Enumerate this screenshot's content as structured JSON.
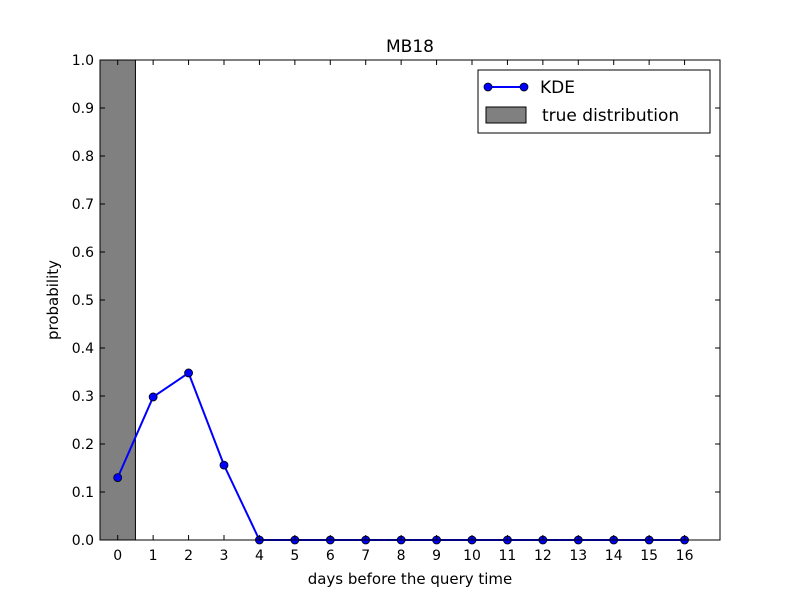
{
  "chart_data": {
    "type": "bar+line",
    "title": "MB18",
    "xlabel": "days before the query time",
    "ylabel": "probability",
    "xlim": [
      -0.5,
      17
    ],
    "ylim": [
      0,
      1.0
    ],
    "x_ticks": [
      "0",
      "1",
      "2",
      "3",
      "4",
      "5",
      "6",
      "7",
      "8",
      "9",
      "10",
      "11",
      "12",
      "13",
      "14",
      "15",
      "16"
    ],
    "y_ticks": [
      "0.0",
      "0.1",
      "0.2",
      "0.3",
      "0.4",
      "0.5",
      "0.6",
      "0.7",
      "0.8",
      "0.9",
      "1.0"
    ],
    "legend_position": "upper-right",
    "series": [
      {
        "name": "KDE",
        "kind": "line",
        "color": "#0000ff",
        "x": [
          0,
          1,
          2,
          3,
          4,
          5,
          6,
          7,
          8,
          9,
          10,
          11,
          12,
          13,
          14,
          15,
          16
        ],
        "values": [
          0.13,
          0.298,
          0.348,
          0.156,
          0,
          0,
          0,
          0,
          0,
          0,
          0,
          0,
          0,
          0,
          0,
          0,
          0
        ]
      },
      {
        "name": "true distribution",
        "kind": "bar",
        "color": "#808080",
        "x": [
          0,
          1,
          2,
          3,
          4,
          5,
          6,
          7,
          8,
          9,
          10,
          11,
          12,
          13,
          14,
          15,
          16
        ],
        "values": [
          1.0,
          0,
          0,
          0,
          0,
          0,
          0,
          0,
          0,
          0,
          0,
          0,
          0,
          0,
          0,
          0,
          0
        ]
      }
    ]
  }
}
